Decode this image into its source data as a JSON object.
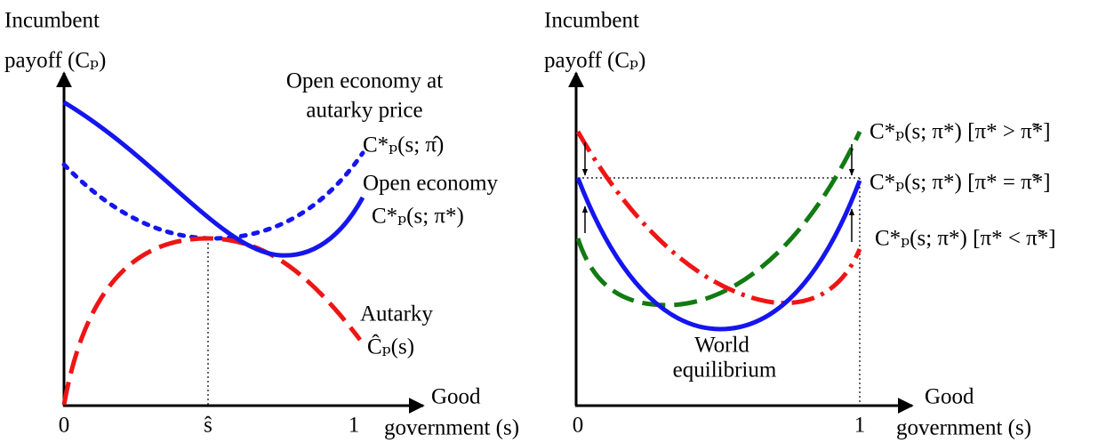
{
  "panels": [
    {
      "y_label": [
        "Incumbent",
        "payoff (Cₚ)"
      ],
      "x_label": [
        "Good",
        "government (s)"
      ],
      "ticks": [
        "0",
        "ŝ",
        "1"
      ],
      "curve_labels": [
        "Open economy at",
        "autarky price",
        "C*ₚ(s; π̂)",
        "Open economy",
        "C*ₚ(s; π*)",
        "Autarky",
        "Ĉₚ(s)"
      ]
    },
    {
      "y_label": [
        "Incumbent",
        "payoff (Cₚ)"
      ],
      "x_label": [
        "Good",
        "government (s)"
      ],
      "ticks": [
        "0",
        "1"
      ],
      "curve_labels": [
        "C*ₚ(s; π*) [π* > π̃*]",
        "C*ₚ(s; π*) [π* = π̃*]",
        "C*ₚ(s; π*) [π* < π̃*]",
        "World",
        "equilibrium"
      ]
    }
  ]
}
